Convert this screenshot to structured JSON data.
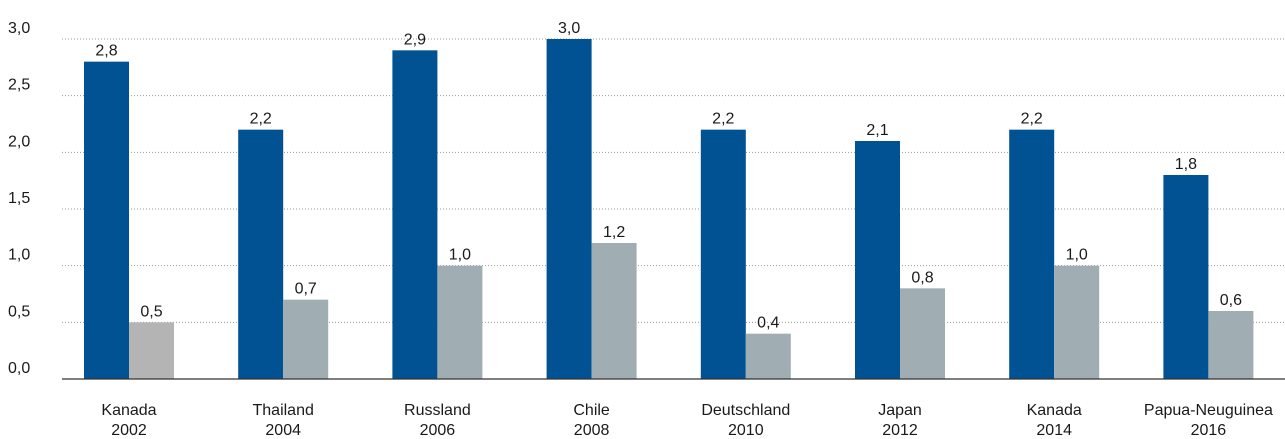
{
  "chart_data": {
    "type": "bar",
    "title": "",
    "xlabel": "",
    "ylabel": "",
    "ylim": [
      0,
      3.0
    ],
    "yticks": [
      "0,0",
      "0,5",
      "1,0",
      "1,5",
      "2,0",
      "2,5",
      "3,0"
    ],
    "grid": true,
    "categories": [
      [
        "Kanada",
        "2002"
      ],
      [
        "Thailand",
        "2004"
      ],
      [
        "Russland",
        "2006"
      ],
      [
        "Chile",
        "2008"
      ],
      [
        "Deutschland",
        "2010"
      ],
      [
        "Japan",
        "2012"
      ],
      [
        "Kanada",
        "2014"
      ],
      [
        "Papua-Neuguinea",
        "2016"
      ]
    ],
    "series": [
      {
        "values": [
          2.8,
          2.2,
          2.9,
          3.0,
          2.2,
          2.1,
          2.2,
          1.8
        ],
        "labels": [
          "2,8",
          "2,2",
          "2,9",
          "3,0",
          "2,2",
          "2,1",
          "2,2",
          "1,8"
        ],
        "color": "#005293"
      },
      {
        "values": [
          0.5,
          0.7,
          1.0,
          1.2,
          0.4,
          0.8,
          1.0,
          0.6
        ],
        "labels": [
          "0,5",
          "0,7",
          "1,0",
          "1,2",
          "0,4",
          "0,8",
          "1,0",
          "0,6"
        ],
        "color": "#a0aeb4",
        "first_bar_color": "#b4b4b4"
      }
    ]
  }
}
